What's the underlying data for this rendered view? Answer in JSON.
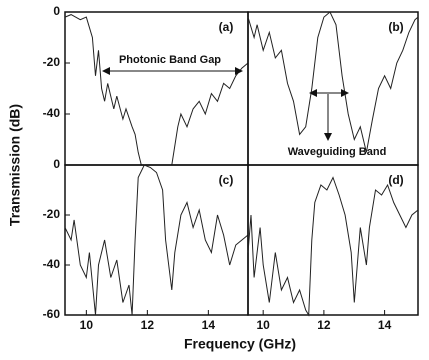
{
  "figure": {
    "xlabel": "Frequency (GHz)",
    "ylabel": "Transmission (dB)"
  },
  "chart_data": [
    {
      "type": "line",
      "panel": "(a)",
      "annotation": "Photonic Band Gap",
      "color": "#222",
      "xlim": [
        9.3,
        15.3
      ],
      "ylim": [
        -60,
        0
      ],
      "yticks": [
        0,
        -20,
        -40
      ],
      "x": [
        9.3,
        9.5,
        9.8,
        10.0,
        10.2,
        10.3,
        10.4,
        10.5,
        10.6,
        10.7,
        10.9,
        11.0,
        11.2,
        11.3,
        11.5,
        11.6,
        11.7,
        11.8,
        12.3,
        12.8,
        13.0,
        13.1,
        13.3,
        13.5,
        13.7,
        13.9,
        14.1,
        14.3,
        14.5,
        14.7,
        14.9,
        15.1,
        15.3
      ],
      "values": [
        -2,
        -1,
        -3,
        -2,
        -10,
        -25,
        -15,
        -30,
        -35,
        -28,
        -38,
        -33,
        -42,
        -38,
        -45,
        -48,
        -55,
        -60,
        null,
        -60,
        -45,
        -40,
        -45,
        -38,
        -35,
        -40,
        -32,
        -35,
        -28,
        -30,
        -25,
        -22,
        -20
      ]
    },
    {
      "type": "line",
      "panel": "(b)",
      "annotation": "Waveguiding Band",
      "color": "#222",
      "xlim": [
        9.5,
        15.1
      ],
      "ylim": [
        -60,
        0
      ],
      "x": [
        9.5,
        9.7,
        9.8,
        10.0,
        10.2,
        10.4,
        10.6,
        10.8,
        11.0,
        11.2,
        11.4,
        11.6,
        11.8,
        12.0,
        12.2,
        12.4,
        12.6,
        12.8,
        13.0,
        13.2,
        13.4,
        13.6,
        13.8,
        14.0,
        14.2,
        14.4,
        14.6,
        14.8,
        15.0,
        15.1
      ],
      "values": [
        -2,
        -10,
        -5,
        -15,
        -8,
        -18,
        -15,
        -28,
        -35,
        -48,
        -45,
        -30,
        -10,
        -2,
        0,
        -5,
        -25,
        -40,
        -50,
        -45,
        -55,
        -42,
        -30,
        -25,
        -30,
        -20,
        -15,
        -8,
        -3,
        -2
      ]
    },
    {
      "type": "line",
      "panel": "(c)",
      "color": "#222",
      "xlim": [
        9.3,
        15.3
      ],
      "ylim": [
        -60,
        0
      ],
      "yticks": [
        0,
        -20,
        -40,
        -60
      ],
      "xticks": [
        10,
        12,
        14
      ],
      "x": [
        9.3,
        9.5,
        9.6,
        9.8,
        10.0,
        10.1,
        10.3,
        10.4,
        10.6,
        10.8,
        11.0,
        11.2,
        11.4,
        11.5,
        11.6,
        11.7,
        11.9,
        12.1,
        12.3,
        12.5,
        12.6,
        12.8,
        12.9,
        13.1,
        13.3,
        13.5,
        13.7,
        13.9,
        14.1,
        14.3,
        14.5,
        14.7,
        14.9,
        15.1,
        15.3
      ],
      "values": [
        -25,
        -30,
        -22,
        -40,
        -45,
        -35,
        -60,
        -40,
        -30,
        -45,
        -38,
        -55,
        -48,
        -60,
        -30,
        -5,
        0,
        -1,
        -3,
        -10,
        -30,
        -50,
        -35,
        -20,
        -15,
        -25,
        -18,
        -30,
        -35,
        -20,
        -28,
        -40,
        -32,
        -30,
        -28
      ]
    },
    {
      "type": "line",
      "panel": "(d)",
      "color": "#222",
      "xlim": [
        9.5,
        15.1
      ],
      "ylim": [
        -60,
        0
      ],
      "xticks": [
        10,
        12,
        14
      ],
      "x": [
        9.5,
        9.6,
        9.7,
        9.9,
        10.0,
        10.2,
        10.4,
        10.6,
        10.8,
        11.0,
        11.2,
        11.4,
        11.5,
        11.6,
        11.7,
        11.9,
        12.1,
        12.3,
        12.5,
        12.7,
        12.9,
        13.0,
        13.2,
        13.4,
        13.5,
        13.7,
        13.9,
        14.1,
        14.3,
        14.5,
        14.7,
        14.9,
        15.1
      ],
      "values": [
        -35,
        -20,
        -45,
        -25,
        -40,
        -55,
        -35,
        -50,
        -45,
        -55,
        -50,
        -58,
        -60,
        -30,
        -15,
        -8,
        -10,
        -5,
        -12,
        -20,
        -35,
        -55,
        -25,
        -40,
        -25,
        -10,
        -12,
        -8,
        -15,
        -20,
        -25,
        -20,
        -18
      ]
    }
  ]
}
